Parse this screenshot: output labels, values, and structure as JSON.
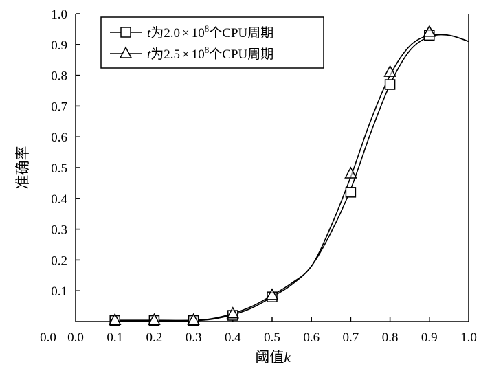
{
  "chart_data": {
    "type": "line",
    "xlabel": "阈值",
    "xlabel_var": "k",
    "ylabel": "准确率",
    "xlim": [
      0.0,
      1.0
    ],
    "ylim": [
      0.0,
      1.0
    ],
    "x_ticks": [
      "0.0",
      "0.1",
      "0.2",
      "0.3",
      "0.4",
      "0.5",
      "0.6",
      "0.7",
      "0.8",
      "0.9",
      "1.0"
    ],
    "y_ticks": [
      "0.1",
      "0.2",
      "0.3",
      "0.4",
      "0.5",
      "0.6",
      "0.7",
      "0.8",
      "0.9",
      "1.0"
    ],
    "x_tick_values": [
      0.0,
      0.1,
      0.2,
      0.3,
      0.4,
      0.5,
      0.6,
      0.7,
      0.8,
      0.9,
      1.0
    ],
    "y_tick_values": [
      0.1,
      0.2,
      0.3,
      0.4,
      0.5,
      0.6,
      0.7,
      0.8,
      0.9,
      1.0
    ],
    "legend_position": "top-left",
    "series": [
      {
        "var": "t",
        "name_pre": "为2.0",
        "times": "×",
        "base": "10",
        "exp": "8",
        "name_post": "个CPU周期",
        "marker": "square",
        "x": [
          0.1,
          0.2,
          0.3,
          0.4,
          0.5,
          0.7,
          0.8,
          0.9
        ],
        "values": [
          0.003,
          0.003,
          0.003,
          0.02,
          0.08,
          0.42,
          0.77,
          0.93
        ],
        "curve_x": [
          0.1,
          0.2,
          0.3,
          0.35,
          0.4,
          0.45,
          0.5,
          0.55,
          0.6,
          0.65,
          0.7,
          0.75,
          0.8,
          0.85,
          0.9,
          0.95,
          1.0
        ],
        "curve_y": [
          0.003,
          0.003,
          0.003,
          0.008,
          0.022,
          0.045,
          0.08,
          0.12,
          0.18,
          0.29,
          0.43,
          0.61,
          0.77,
          0.88,
          0.925,
          0.93,
          0.91
        ]
      },
      {
        "var": "t",
        "name_pre": "为2.5",
        "times": "×",
        "base": "10",
        "exp": "8",
        "name_post": "个CPU周期",
        "marker": "triangle",
        "x": [
          0.1,
          0.2,
          0.3,
          0.4,
          0.5,
          0.7,
          0.8,
          0.9
        ],
        "values": [
          0.004,
          0.004,
          0.004,
          0.025,
          0.085,
          0.48,
          0.81,
          0.94
        ],
        "curve_x": [
          0.1,
          0.2,
          0.3,
          0.35,
          0.4,
          0.45,
          0.5,
          0.55,
          0.6,
          0.65,
          0.7,
          0.75,
          0.8,
          0.85,
          0.9,
          0.95,
          1.0
        ],
        "curve_y": [
          0.004,
          0.004,
          0.004,
          0.01,
          0.026,
          0.05,
          0.085,
          0.125,
          0.18,
          0.31,
          0.47,
          0.65,
          0.8,
          0.895,
          0.93,
          0.93,
          0.91
        ]
      }
    ]
  }
}
